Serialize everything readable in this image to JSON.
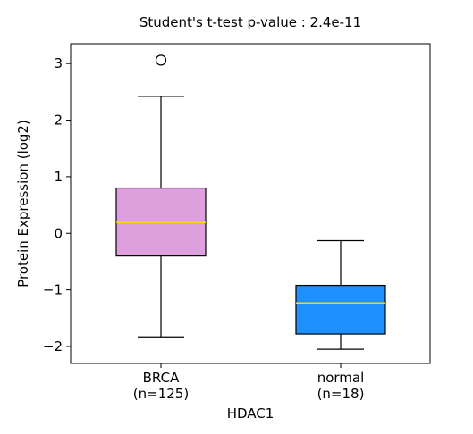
{
  "chart_data": {
    "type": "box",
    "title": "Student's t-test p-value : 2.4e-11",
    "xlabel": "HDAC1",
    "ylabel": "Protein Expression (log2)",
    "ylim": [
      -2.3,
      3.35
    ],
    "yticks": [
      3,
      2,
      1,
      0,
      -1,
      -2
    ],
    "ytick_labels": [
      "3",
      "2",
      "1",
      "0",
      "−1",
      "−2"
    ],
    "grid": false,
    "groups": [
      {
        "label": "BRCA",
        "count_label": "(n=125)",
        "whisker_low": -1.83,
        "q1": -0.4,
        "median": 0.19,
        "q3": 0.8,
        "whisker_high": 2.42,
        "outliers": [
          3.06
        ],
        "color": "#dda0dd"
      },
      {
        "label": "normal",
        "count_label": "(n=18)",
        "whisker_low": -2.05,
        "q1": -1.78,
        "median": -1.23,
        "q3": -0.92,
        "whisker_high": -0.13,
        "outliers": [],
        "color": "#1e90ff"
      }
    ],
    "median_color": "#ffd700"
  }
}
